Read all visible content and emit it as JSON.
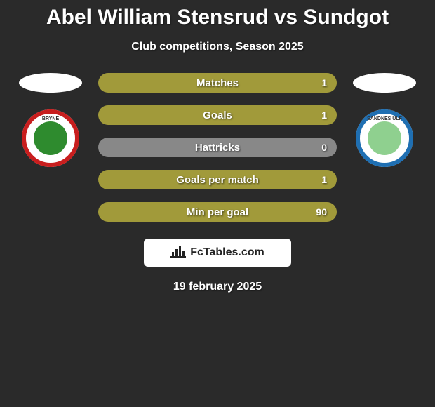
{
  "title": "Abel William Stensrud vs Sundgot",
  "subtitle": "Club competitions, Season 2025",
  "date": "19 february 2025",
  "bar_colors": {
    "active": "#a19a3a",
    "neutral": "#888888"
  },
  "stats": [
    {
      "label": "Matches",
      "right_value": "1",
      "fill": 1.0
    },
    {
      "label": "Goals",
      "right_value": "1",
      "fill": 1.0
    },
    {
      "label": "Hattricks",
      "right_value": "0",
      "fill": 0.0
    },
    {
      "label": "Goals per match",
      "right_value": "1",
      "fill": 1.0
    },
    {
      "label": "Min per goal",
      "right_value": "90",
      "fill": 1.0
    }
  ],
  "clubs": {
    "left": {
      "name": "Bryne FK",
      "badge_bg": "#ffffff",
      "ring_color": "#c81e1e",
      "inner_color": "#2e8b2e",
      "text": "BRYNE"
    },
    "right": {
      "name": "Sandnes Ulf",
      "badge_bg": "#ffffff",
      "ring_color": "#1f6fb2",
      "inner_color": "#8fd08f",
      "text": "SANDNES ULF"
    }
  },
  "brand": {
    "name": "FcTables.com",
    "icon": "chart-bar-icon"
  },
  "background_color": "#2a2a2a",
  "ellipse_color": "#ffffff"
}
